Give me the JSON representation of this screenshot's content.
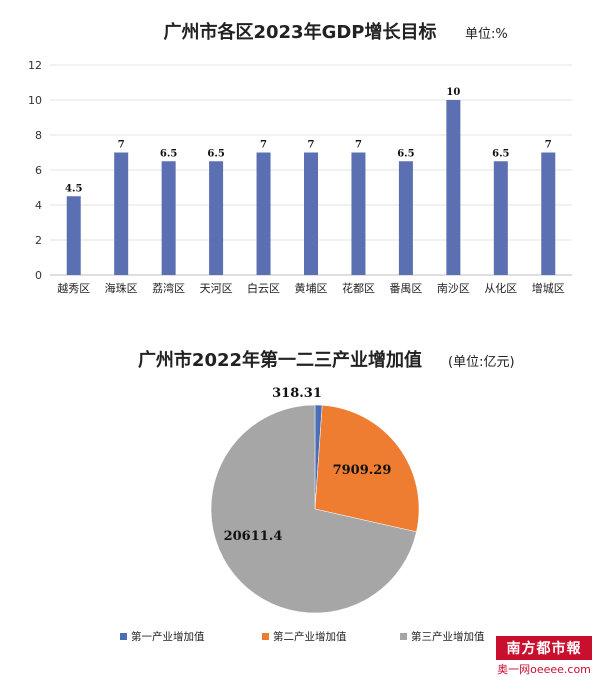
{
  "chart_data": [
    {
      "type": "bar",
      "title": "广州市各区2023年GDP增长目标",
      "unit_note": "单位:%",
      "categories": [
        "越秀区",
        "海珠区",
        "荔湾区",
        "天河区",
        "白云区",
        "黄埔区",
        "花都区",
        "番禺区",
        "南沙区",
        "从化区",
        "增城区"
      ],
      "values": [
        4.5,
        7,
        6.5,
        6.5,
        7,
        7,
        7,
        6.5,
        10,
        6.5,
        7
      ],
      "value_labels": [
        "4.5",
        "7",
        "6.5",
        "6.5",
        "7",
        "7",
        "7",
        "6.5",
        "10",
        "6.5",
        "7"
      ],
      "y_ticks": [
        "0",
        "2",
        "4",
        "6",
        "8",
        "10",
        "12"
      ],
      "ylim": [
        0,
        12
      ],
      "grid": true,
      "bar_color": "#5b6fb3"
    },
    {
      "type": "pie",
      "title": "广州市2022年第一二三产业增加值",
      "unit_note": "(单位:亿元)",
      "labels": [
        "第一产业增加值",
        "第二产业增加值",
        "第三产业增加值"
      ],
      "values": [
        318.31,
        7909.29,
        20611.4
      ],
      "value_labels": [
        "318.31",
        "7909.29",
        "20611.4"
      ],
      "colors": [
        "#4a6fb8",
        "#ee7d31",
        "#a6a6a6"
      ],
      "legend_position": "bottom"
    }
  ],
  "branding": {
    "logo_main": "南方都市報",
    "logo_sub": "奥一网oeeee.com"
  }
}
